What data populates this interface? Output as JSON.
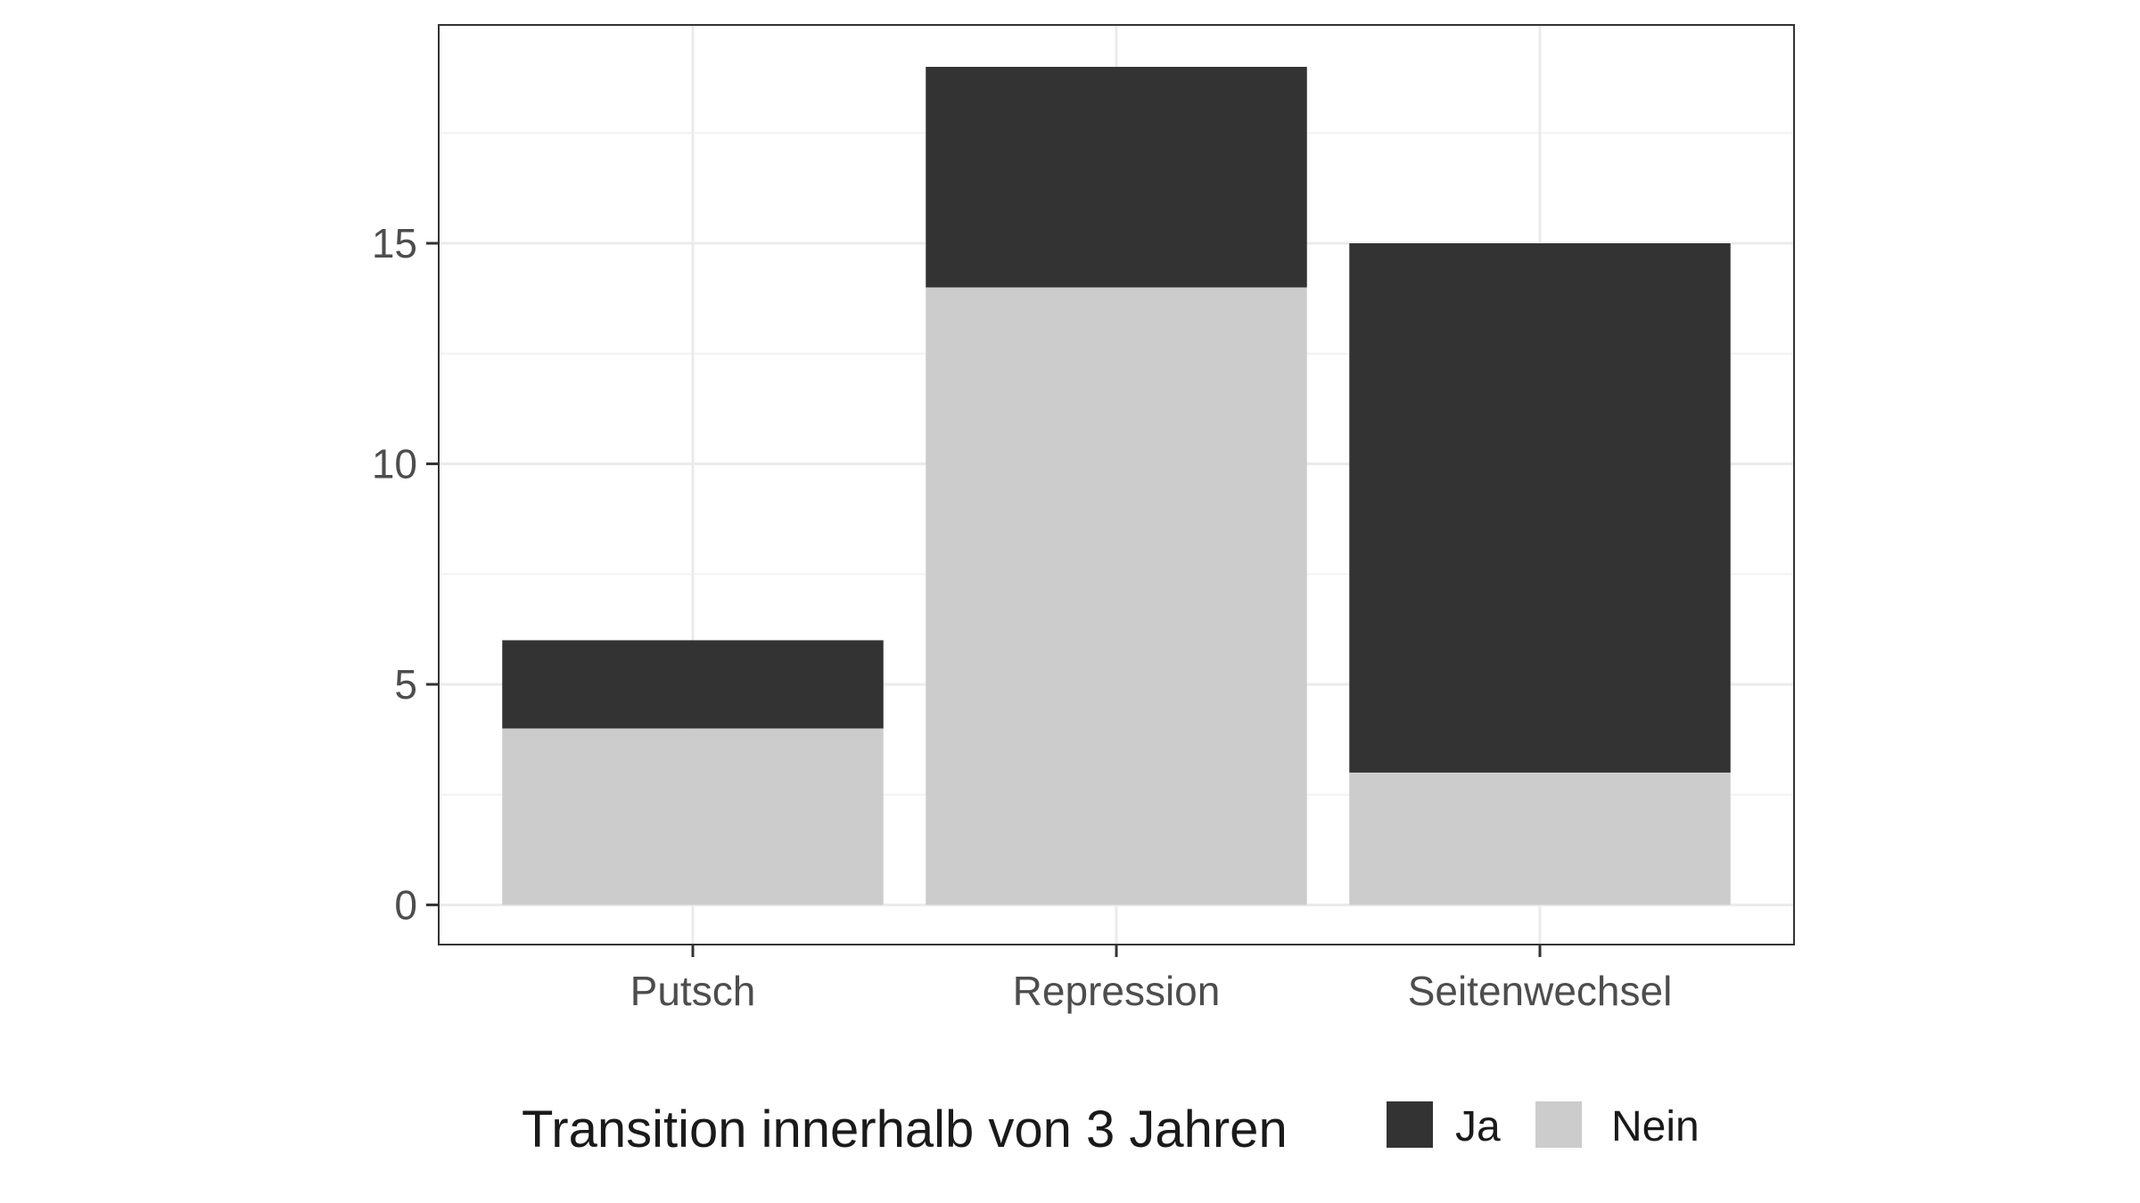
{
  "chart_data": {
    "type": "bar",
    "stacked": true,
    "categories": [
      "Putsch",
      "Repression",
      "Seitenwechsel"
    ],
    "series": [
      {
        "name": "Nein",
        "values": [
          4,
          14,
          3
        ],
        "color": "#cccccc"
      },
      {
        "name": "Ja",
        "values": [
          2,
          5,
          12
        ],
        "color": "#333333"
      }
    ],
    "title": "",
    "xlabel": "",
    "ylabel": "",
    "ylim": [
      -0.9,
      19.95
    ],
    "yticks": [
      0,
      5,
      10,
      15
    ],
    "ytick_labels": [
      "0",
      "5",
      "10",
      "15"
    ],
    "grid": true,
    "legend": {
      "title": "Transition innerhalb von 3 Jahren",
      "position": "bottom",
      "items": [
        {
          "label": "Ja",
          "color": "#333333"
        },
        {
          "label": "Nein",
          "color": "#cccccc"
        }
      ]
    }
  }
}
